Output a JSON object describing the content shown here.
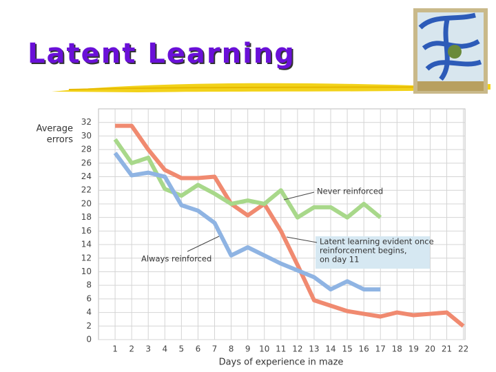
{
  "chart_data": {
    "type": "line",
    "title": "Latent Learning",
    "ylabel": [
      "Average",
      "errors"
    ],
    "xlabel": "Days of experience in maze",
    "x": [
      1,
      2,
      3,
      4,
      5,
      6,
      7,
      8,
      9,
      10,
      11,
      12,
      13,
      14,
      15,
      16,
      17,
      18,
      19,
      20,
      21,
      22
    ],
    "series": [
      {
        "color": "#f08a70",
        "values": [
          31.5,
          31.5,
          28,
          25,
          23.8,
          23.8,
          24,
          20,
          18.3,
          20,
          16,
          11,
          5.8,
          5,
          4.2,
          3.8,
          3.4,
          4,
          3.6,
          3.8,
          4,
          2
        ]
      },
      {
        "color": "#a8d88a",
        "values": [
          29.5,
          26,
          26.8,
          22.2,
          21.2,
          22.8,
          21.5,
          20,
          20.5,
          20,
          22,
          18,
          19.5,
          19.5,
          18,
          20,
          18,
          null,
          null,
          null,
          null,
          null
        ]
      },
      {
        "color": "#8fb4e3",
        "values": [
          27.5,
          24.2,
          24.6,
          24,
          19.8,
          19,
          17.2,
          12.4,
          13.6,
          12.4,
          11.2,
          10.2,
          9.2,
          7.4,
          8.6,
          7.4,
          7.4,
          null,
          null,
          null,
          null,
          null
        ]
      }
    ],
    "annotations": [
      [
        "Never reinforced"
      ],
      [
        "Always reinforced"
      ],
      [
        "Latent learning evident once",
        "reinforcement begins,",
        "on day 11"
      ]
    ],
    "xlim": [
      0,
      22.1
    ],
    "ylim": [
      0,
      34
    ],
    "xticks": [
      1,
      2,
      3,
      4,
      5,
      6,
      7,
      8,
      9,
      10,
      11,
      12,
      13,
      14,
      15,
      16,
      17,
      18,
      19,
      20,
      21,
      22
    ],
    "yticks": [
      0,
      2,
      4,
      6,
      8,
      10,
      12,
      14,
      16,
      18,
      20,
      22,
      24,
      26,
      28,
      30,
      32
    ],
    "grid": true
  }
}
